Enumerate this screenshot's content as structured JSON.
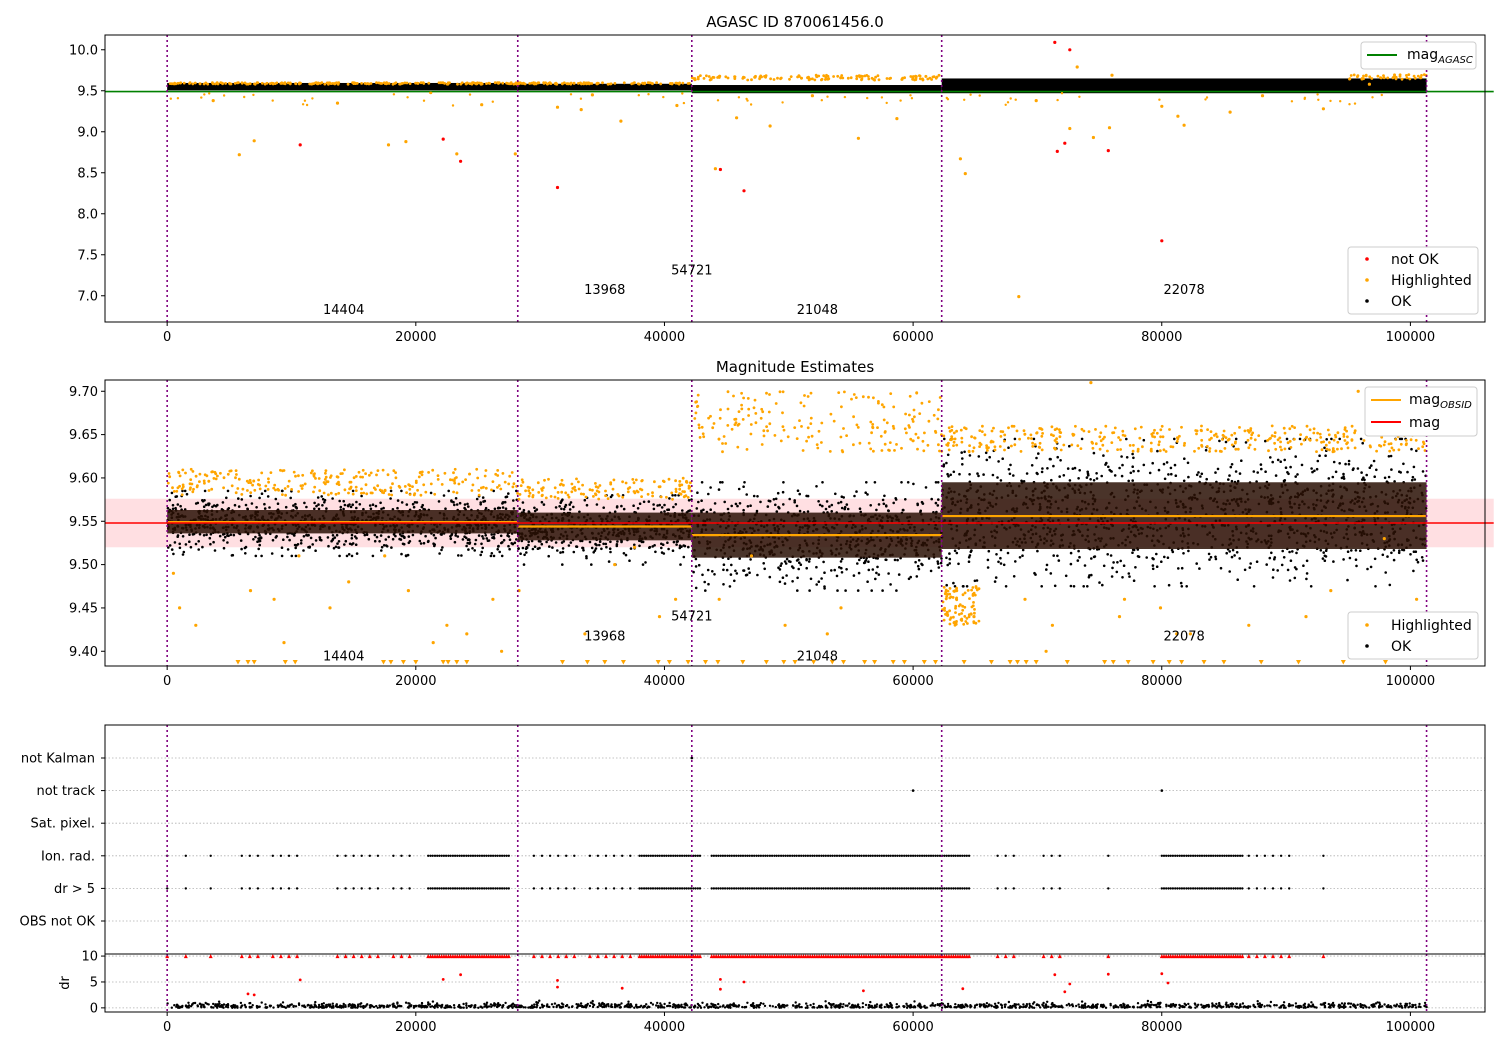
{
  "figure": {
    "bg": "#ffffff",
    "colors": {
      "ok": "#000000",
      "highlighted": "#ffa500",
      "not_ok": "#ff0000",
      "agasc_line": "#008000",
      "mag_line": "#ff0000",
      "obsid_line": "#ffa500",
      "boundary": "#800080",
      "band": "#ffc0c6"
    }
  },
  "chart_data": [
    {
      "type": "scatter",
      "title": "AGASC ID 870061456.0",
      "xlim": [
        -5000,
        106000
      ],
      "ylim": [
        6.68,
        10.18
      ],
      "xticks": [
        0,
        20000,
        40000,
        60000,
        80000,
        100000
      ],
      "yticks": [
        7.0,
        7.5,
        8.0,
        8.5,
        9.0,
        9.5,
        10.0
      ],
      "ytick_labels": [
        "7.0",
        "7.5",
        "8.0",
        "8.5",
        "9.0",
        "9.5",
        "10.0"
      ],
      "observation_boundaries": [
        0,
        28200,
        42200,
        62300,
        101300
      ],
      "observations": [
        {
          "label": "14404",
          "x": 14200,
          "y": 6.84
        },
        {
          "label": "13968",
          "x": 35200,
          "y": 7.08
        },
        {
          "label": "54721",
          "x": 42200,
          "y": 7.32
        },
        {
          "label": "21048",
          "x": 52300,
          "y": 6.84
        },
        {
          "label": "22078",
          "x": 81800,
          "y": 7.08
        }
      ],
      "agasc_mag": 9.49,
      "agasc_mag_range": [
        -5000,
        106700
      ],
      "ok_bands": [
        {
          "x0": 0,
          "x1": 28200,
          "center": 9.55,
          "half": 0.045
        },
        {
          "x0": 28200,
          "x1": 42200,
          "center": 9.545,
          "half": 0.04
        },
        {
          "x0": 42200,
          "x1": 62300,
          "center": 9.52,
          "half": 0.05
        },
        {
          "x0": 62300,
          "x1": 101300,
          "center": 9.56,
          "half": 0.09
        }
      ],
      "highlighted_upper": [
        {
          "x0": 0,
          "x1": 42200,
          "y0": 9.58,
          "y1": 9.6
        },
        {
          "x0": 42200,
          "x1": 62300,
          "y0": 9.63,
          "y1": 9.69
        },
        {
          "x0": 95000,
          "x1": 101300,
          "y0": 9.64,
          "y1": 9.7
        }
      ],
      "highlighted_points": [
        [
          5800,
          8.72
        ],
        [
          7000,
          8.89
        ],
        [
          17800,
          8.84
        ],
        [
          19200,
          8.88
        ],
        [
          23300,
          8.73
        ],
        [
          28000,
          8.73
        ],
        [
          33300,
          9.27
        ],
        [
          36500,
          9.13
        ],
        [
          41000,
          9.32
        ],
        [
          44100,
          8.55
        ],
        [
          45800,
          9.17
        ],
        [
          48500,
          9.07
        ],
        [
          55600,
          8.92
        ],
        [
          63800,
          8.67
        ],
        [
          64200,
          8.49
        ],
        [
          68500,
          6.99
        ],
        [
          72600,
          9.04
        ],
        [
          74500,
          8.93
        ],
        [
          75800,
          9.05
        ],
        [
          76000,
          9.69
        ],
        [
          80000,
          9.31
        ],
        [
          81300,
          9.19
        ],
        [
          81800,
          9.08
        ],
        [
          85500,
          9.24
        ],
        [
          93000,
          9.28
        ],
        [
          96700,
          9.58
        ],
        [
          3700,
          9.38
        ],
        [
          13700,
          9.35
        ],
        [
          25300,
          9.33
        ],
        [
          31400,
          9.3
        ],
        [
          34200,
          9.45
        ],
        [
          51900,
          9.44
        ],
        [
          58700,
          9.16
        ],
        [
          69900,
          9.38
        ],
        [
          73200,
          9.79
        ],
        [
          88100,
          9.44
        ]
      ],
      "not_ok_points": [
        [
          10700,
          8.84
        ],
        [
          22200,
          8.91
        ],
        [
          23600,
          8.64
        ],
        [
          31400,
          8.32
        ],
        [
          44500,
          8.54
        ],
        [
          46400,
          8.28
        ],
        [
          71400,
          10.09
        ],
        [
          71600,
          8.76
        ],
        [
          72200,
          8.86
        ],
        [
          72600,
          10.0
        ],
        [
          75700,
          8.77
        ],
        [
          80000,
          7.67
        ]
      ],
      "legend": {
        "position": "lower right",
        "entries": [
          {
            "label": "not OK",
            "marker": "not_ok"
          },
          {
            "label": "Highlighted",
            "marker": "highlighted"
          },
          {
            "label": "OK",
            "marker": "ok"
          }
        ]
      },
      "legend_top": {
        "position": "upper right",
        "label": "mag",
        "subscript": "AGASC"
      }
    },
    {
      "type": "scatter",
      "title": "Magnitude Estimates",
      "xlim": [
        -5000,
        106000
      ],
      "ylim": [
        9.383,
        9.713
      ],
      "xticks": [
        0,
        20000,
        40000,
        60000,
        80000,
        100000
      ],
      "yticks": [
        9.4,
        9.45,
        9.5,
        9.55,
        9.6,
        9.65,
        9.7
      ],
      "ytick_labels": [
        "9.40",
        "9.45",
        "9.50",
        "9.55",
        "9.60",
        "9.65",
        "9.70"
      ],
      "observation_boundaries": [
        0,
        28200,
        42200,
        62300,
        101300
      ],
      "observations": [
        {
          "label": "14404",
          "x": 14200,
          "y": 9.395
        },
        {
          "label": "13968",
          "x": 35200,
          "y": 9.418
        },
        {
          "label": "54721",
          "x": 42200,
          "y": 9.441
        },
        {
          "label": "21048",
          "x": 52300,
          "y": 9.395
        },
        {
          "label": "22078",
          "x": 81800,
          "y": 9.418
        }
      ],
      "mag": 9.548,
      "mag_band": [
        9.52,
        9.576
      ],
      "mag_range": [
        -5000,
        106700
      ],
      "obsid_mags": [
        {
          "x0": 0,
          "x1": 28200,
          "mag": 9.549,
          "band": [
            9.536,
            9.563
          ],
          "ok_range": [
            9.51,
            9.585
          ],
          "hl_range": [
            9.58,
            9.61
          ]
        },
        {
          "x0": 28200,
          "x1": 42200,
          "mag": 9.544,
          "band": [
            9.528,
            9.56
          ],
          "ok_range": [
            9.5,
            9.58
          ],
          "hl_range": [
            9.575,
            9.6
          ]
        },
        {
          "x0": 42200,
          "x1": 62300,
          "mag": 9.534,
          "band": [
            9.508,
            9.56
          ],
          "ok_range": [
            9.47,
            9.595
          ],
          "hl_range": [
            9.63,
            9.7
          ]
        },
        {
          "x0": 62300,
          "x1": 101300,
          "mag": 9.556,
          "band": [
            9.518,
            9.595
          ],
          "ok_range": [
            9.475,
            9.645
          ],
          "hl_range": [
            9.63,
            9.66
          ]
        }
      ],
      "highlighted_points": [
        [
          500,
          9.49
        ],
        [
          1000,
          9.45
        ],
        [
          2300,
          9.43
        ],
        [
          6700,
          9.47
        ],
        [
          8600,
          9.46
        ],
        [
          9400,
          9.41
        ],
        [
          10600,
          9.51
        ],
        [
          13100,
          9.45
        ],
        [
          14600,
          9.48
        ],
        [
          17500,
          9.51
        ],
        [
          19400,
          9.47
        ],
        [
          21400,
          9.41
        ],
        [
          22500,
          9.43
        ],
        [
          24100,
          9.42
        ],
        [
          26200,
          9.46
        ],
        [
          26900,
          9.4
        ],
        [
          28300,
          9.47
        ],
        [
          33600,
          9.42
        ],
        [
          36000,
          9.5
        ],
        [
          37600,
          9.52
        ],
        [
          39600,
          9.44
        ],
        [
          40900,
          9.46
        ],
        [
          44400,
          9.46
        ],
        [
          47000,
          9.51
        ],
        [
          49700,
          9.43
        ],
        [
          53100,
          9.42
        ],
        [
          54200,
          9.45
        ],
        [
          63500,
          9.47
        ],
        [
          64900,
          9.44
        ],
        [
          69000,
          9.46
        ],
        [
          70700,
          9.4
        ],
        [
          71200,
          9.43
        ],
        [
          74300,
          9.71
        ],
        [
          76600,
          9.44
        ],
        [
          77000,
          9.46
        ],
        [
          79900,
          9.45
        ],
        [
          81200,
          9.42
        ],
        [
          82300,
          9.42
        ],
        [
          87000,
          9.43
        ],
        [
          91600,
          9.44
        ],
        [
          93600,
          9.47
        ],
        [
          97900,
          9.53
        ],
        [
          98600,
          9.42
        ],
        [
          99300,
          9.4
        ],
        [
          100500,
          9.46
        ],
        [
          95800,
          9.7
        ]
      ],
      "low_markers_x": [
        5700,
        6500,
        7000,
        9500,
        10300,
        17400,
        18000,
        19000,
        20000,
        22200,
        22600,
        23300,
        24100,
        31800,
        33800,
        35200,
        36700,
        39500,
        40400,
        41900,
        43300,
        44300,
        46300,
        48200,
        49600,
        50500,
        52000,
        53500,
        54400,
        56100,
        56900,
        58400,
        59300,
        60900,
        61800,
        64100,
        66300,
        67800,
        68400,
        69100,
        69900,
        72400,
        75400,
        76100,
        77300,
        79300,
        80600,
        81600,
        83400,
        85000,
        88000,
        91000,
        94600,
        98000
      ],
      "legend": {
        "position": "lower right",
        "entries": [
          {
            "label": "Highlighted",
            "marker": "highlighted"
          },
          {
            "label": "OK",
            "marker": "ok"
          }
        ]
      },
      "legend_top": {
        "position": "upper right",
        "entries": [
          {
            "label": "mag",
            "subscript": "OBSID",
            "marker": "obsid_line"
          },
          {
            "label": "mag",
            "marker": "mag_line"
          }
        ]
      }
    },
    {
      "type": "scatter",
      "title": "",
      "xlim": [
        -5000,
        106000
      ],
      "categories": [
        "not Kalman",
        "not track",
        "Sat. pixel.",
        "Ion. rad.",
        "dr > 5",
        "OBS not OK"
      ],
      "observation_boundaries": [
        0,
        28200,
        42200,
        62300,
        101300
      ],
      "flag_points": {
        "not Kalman": [
          42200
        ],
        "not track": [
          60000,
          80000
        ],
        "Sat. pixel.": [],
        "Ion. rad.": "sparse",
        "dr > 5": "sparse",
        "OBS not OK": []
      },
      "flag_segments": [
        [
          0,
          200
        ],
        [
          1500,
          2000
        ],
        [
          3500,
          4000
        ],
        [
          6000,
          7500
        ],
        [
          8500,
          10800
        ],
        [
          13700,
          17500
        ],
        [
          18200,
          20000
        ],
        [
          21000,
          27500
        ],
        [
          29500,
          33000
        ],
        [
          34000,
          37500
        ],
        [
          38000,
          43000
        ],
        [
          43800,
          64500
        ],
        [
          66800,
          68500
        ],
        [
          70500,
          72000
        ],
        [
          75700,
          76000
        ],
        [
          80000,
          86500
        ],
        [
          87000,
          90500
        ],
        [
          93000,
          93300
        ]
      ]
    },
    {
      "type": "scatter",
      "title": "",
      "xlim": [
        -5000,
        106000
      ],
      "ylim": [
        -0.8,
        10.4
      ],
      "xticks": [
        0,
        20000,
        40000,
        60000,
        80000,
        100000
      ],
      "yticks": [
        0,
        5,
        10
      ],
      "ytick_labels": [
        "0",
        "5",
        "10"
      ],
      "ylabel": "dr",
      "observation_boundaries": [
        0,
        28200,
        42200,
        62300,
        101300
      ],
      "dr_capped": 10,
      "dr_outliers": [
        [
          10700,
          5.4
        ],
        [
          22200,
          5.5
        ],
        [
          23600,
          6.4
        ],
        [
          31400,
          5.3
        ],
        [
          44500,
          5.5
        ],
        [
          44500,
          3.6
        ],
        [
          46400,
          5.0
        ],
        [
          71400,
          6.4
        ],
        [
          72600,
          4.6
        ],
        [
          75700,
          6.5
        ],
        [
          80000,
          6.6
        ],
        [
          80500,
          4.8
        ],
        [
          6500,
          2.7
        ],
        [
          7000,
          2.5
        ],
        [
          31400,
          4.0
        ],
        [
          36600,
          3.8
        ],
        [
          56000,
          3.3
        ],
        [
          64000,
          3.7
        ],
        [
          72200,
          3.1
        ]
      ]
    }
  ]
}
